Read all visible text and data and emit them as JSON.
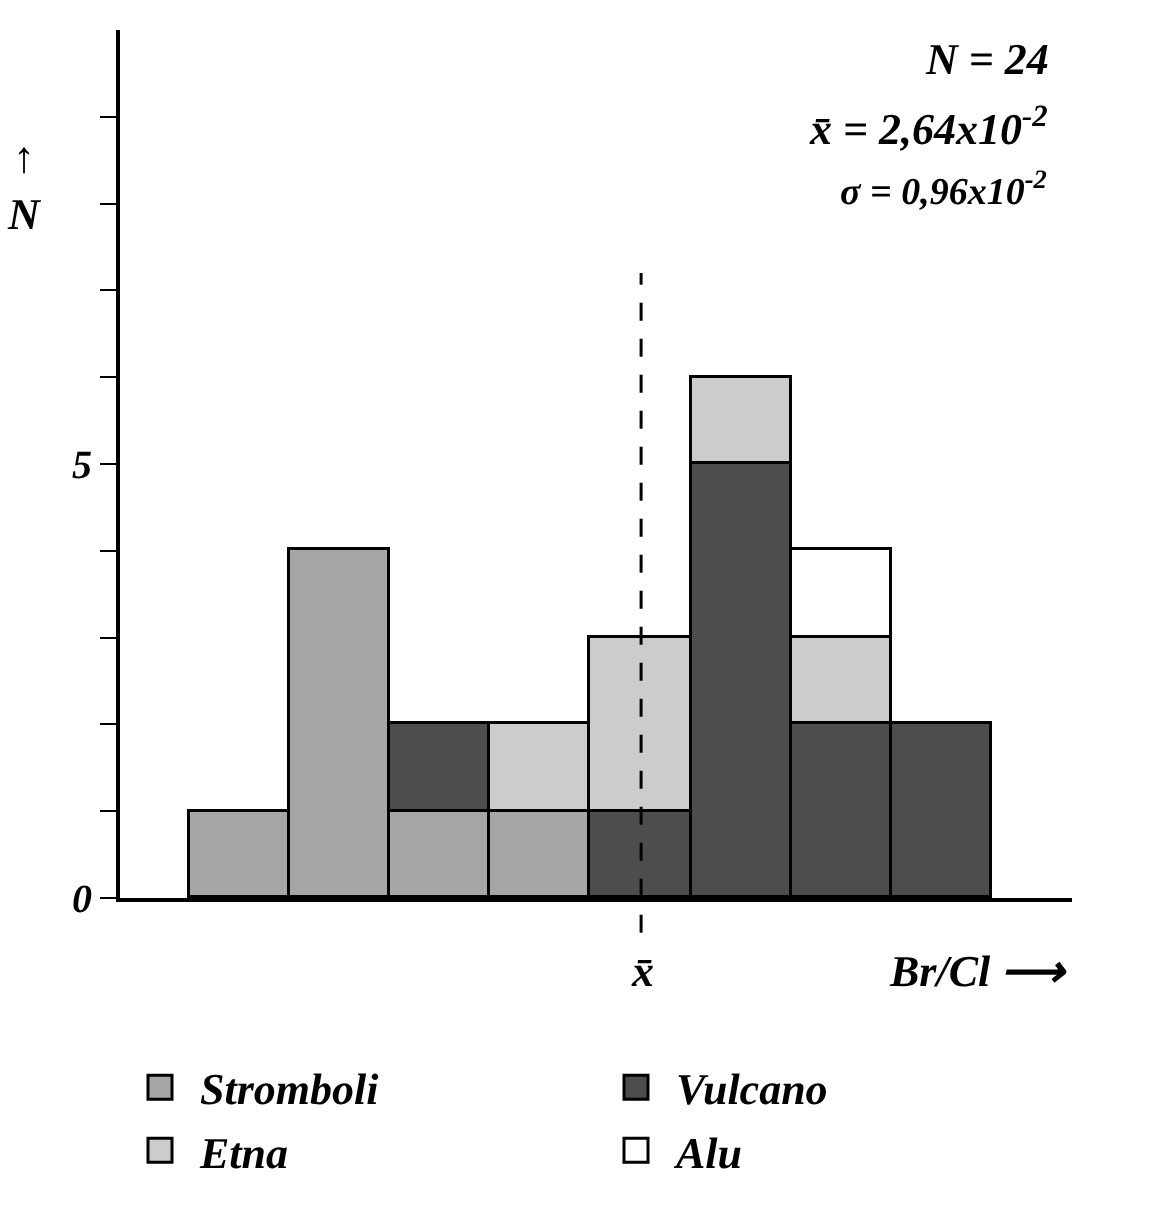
{
  "chart_data": {
    "type": "bar",
    "stacked": true,
    "categories": [
      null,
      null,
      null,
      null,
      null,
      null,
      null,
      null
    ],
    "series": [
      {
        "name": "Stromboli",
        "color": "#a6a6a6",
        "values": [
          1,
          4,
          1,
          1,
          0,
          0,
          0,
          0
        ]
      },
      {
        "name": "Vulcano",
        "color": "#4d4d4d",
        "values": [
          0,
          0,
          1,
          0,
          1,
          5,
          2,
          2
        ]
      },
      {
        "name": "Etna",
        "color": "#cccccc",
        "values": [
          0,
          0,
          0,
          1,
          2,
          1,
          1,
          0
        ]
      },
      {
        "name": "Alu",
        "color": "#ffffff",
        "values": [
          0,
          0,
          0,
          0,
          0,
          0,
          1,
          0
        ]
      }
    ],
    "ylim": [
      0,
      10
    ],
    "yticks": [
      0,
      {
        "value": 1,
        "label": null
      },
      {
        "value": 2,
        "label": null
      },
      {
        "value": 3,
        "label": null
      },
      {
        "value": 4,
        "label": null
      },
      5,
      {
        "value": 6,
        "label": null
      },
      {
        "value": 7,
        "label": null
      },
      {
        "value": 8,
        "label": null
      },
      {
        "value": 9,
        "label": null
      }
    ],
    "ylabel": "↑\nN",
    "xlabel": "Br/Cl ⟶",
    "annotations": [
      "N = 24",
      "x̄ = 2,64x10$^{-2}$",
      "σ = 0,96x10$^{-2}$",
      "x̄"
    ],
    "tick_labels": "y",
    "legend": "bottom"
  }
}
